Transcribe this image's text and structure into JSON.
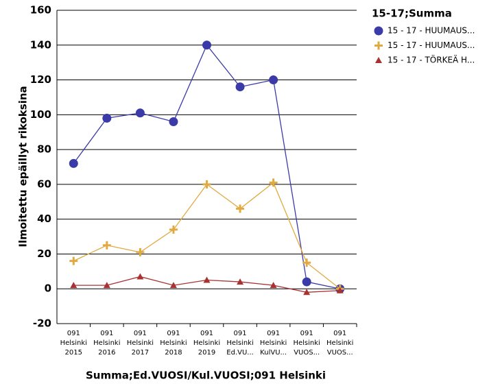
{
  "chart_data": {
    "type": "line",
    "y_label": "Ilmoitettu epäillyt rikoksina",
    "x_label": "Summa;Ed.VUOSI/Kul.VUOSI;091 Helsinki",
    "legend_title": "15-17;Summa",
    "categories": [
      [
        "091",
        "Helsinki",
        "2015"
      ],
      [
        "091",
        "Helsinki",
        "2016"
      ],
      [
        "091",
        "Helsinki",
        "2017"
      ],
      [
        "091",
        "Helsinki",
        "2018"
      ],
      [
        "091",
        "Helsinki",
        "2019"
      ],
      [
        "091",
        "Helsinki",
        "Ed.VU..."
      ],
      [
        "091",
        "Helsinki",
        "KulVU..."
      ],
      [
        "091",
        "Helsinki",
        "VUOS..."
      ],
      [
        "091",
        "Helsinki",
        "VUOS..."
      ]
    ],
    "series": [
      {
        "name": "15 - 17 - HUUMAUS...",
        "color": "#3a3aa8",
        "marker": "circle",
        "values": [
          72,
          98,
          101,
          96,
          140,
          116,
          120,
          4,
          0
        ]
      },
      {
        "name": "15 - 17 - HUUMAUS...",
        "color": "#e0aa40",
        "marker": "plus",
        "values": [
          16,
          25,
          21,
          34,
          60,
          46,
          61,
          15,
          0
        ]
      },
      {
        "name": "15 - 17 - TÖRKEÄ H...",
        "color": "#a83232",
        "marker": "triangle",
        "values": [
          2,
          2,
          7,
          2,
          5,
          4,
          2,
          -2,
          -1
        ]
      }
    ],
    "ylim": [
      -20,
      160
    ],
    "yticks": [
      -20,
      0,
      20,
      40,
      60,
      80,
      100,
      120,
      140,
      160
    ],
    "grid": true
  }
}
